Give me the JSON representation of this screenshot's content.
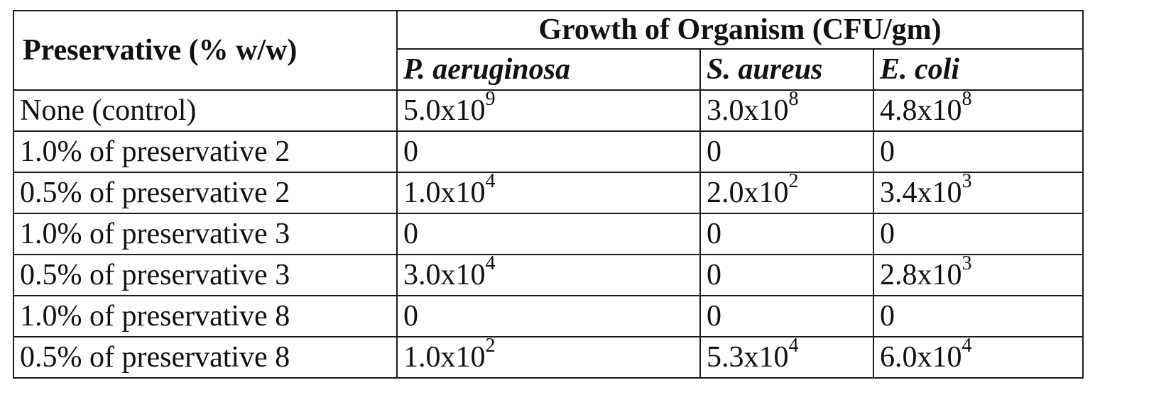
{
  "table": {
    "header": {
      "preservative_label": "Preservative (% w/w)",
      "group_label": "Growth of Organism (CFU/gm)",
      "organisms": [
        "P. aeruginosa",
        "S. aureus",
        "E. coli"
      ]
    },
    "rows": [
      {
        "label": "None (control)",
        "values": [
          {
            "mantissa": "5.0x10",
            "exp": "9"
          },
          {
            "mantissa": "3.0x10",
            "exp": "8"
          },
          {
            "mantissa": "4.8x10",
            "exp": "8"
          }
        ]
      },
      {
        "label": "1.0% of preservative 2",
        "values": [
          {
            "mantissa": "0",
            "exp": ""
          },
          {
            "mantissa": "0",
            "exp": ""
          },
          {
            "mantissa": "0",
            "exp": ""
          }
        ]
      },
      {
        "label": "0.5% of preservative 2",
        "values": [
          {
            "mantissa": "1.0x10",
            "exp": "4"
          },
          {
            "mantissa": "2.0x10",
            "exp": "2"
          },
          {
            "mantissa": "3.4x10",
            "exp": "3"
          }
        ]
      },
      {
        "label": "1.0% of preservative 3",
        "values": [
          {
            "mantissa": "0",
            "exp": ""
          },
          {
            "mantissa": "0",
            "exp": ""
          },
          {
            "mantissa": "0",
            "exp": ""
          }
        ]
      },
      {
        "label": "0.5% of preservative 3",
        "values": [
          {
            "mantissa": "3.0x10",
            "exp": "4"
          },
          {
            "mantissa": "0",
            "exp": ""
          },
          {
            "mantissa": "2.8x10",
            "exp": "3"
          }
        ]
      },
      {
        "label": "1.0% of preservative 8",
        "values": [
          {
            "mantissa": "0",
            "exp": ""
          },
          {
            "mantissa": "0",
            "exp": ""
          },
          {
            "mantissa": "0",
            "exp": ""
          }
        ]
      },
      {
        "label": "0.5% of preservative 8",
        "values": [
          {
            "mantissa": "1.0x10",
            "exp": "2"
          },
          {
            "mantissa": "5.3x10",
            "exp": "4"
          },
          {
            "mantissa": "6.0x10",
            "exp": "4"
          }
        ]
      }
    ]
  }
}
